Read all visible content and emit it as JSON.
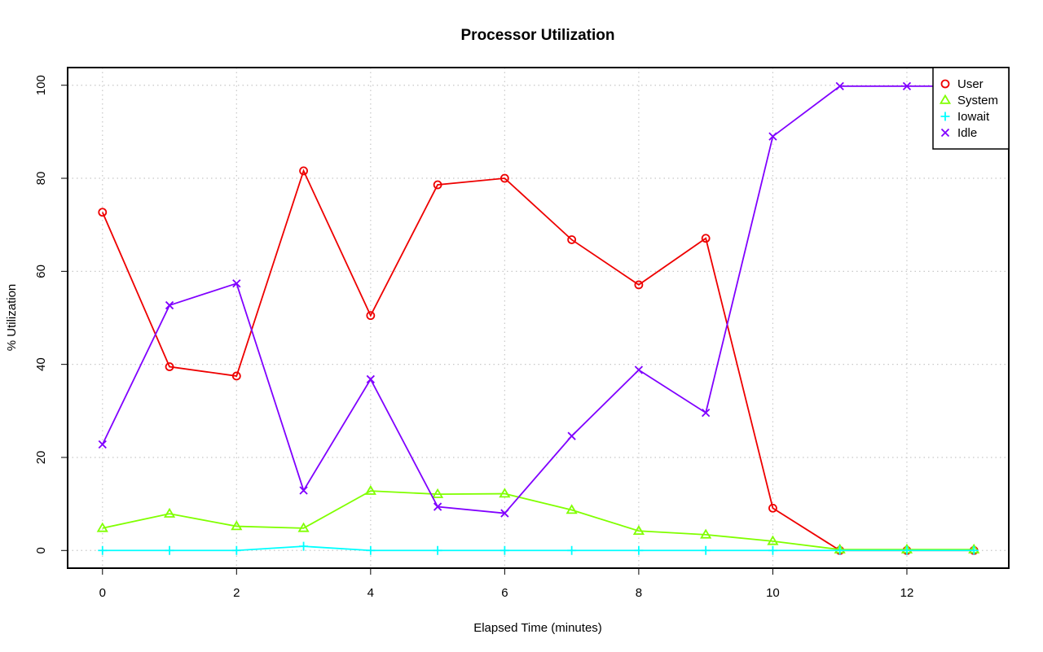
{
  "chart_data": {
    "type": "line",
    "title": "Processor Utilization",
    "xlabel": "Elapsed Time (minutes)",
    "ylabel": "% Utilization",
    "x": [
      0,
      1,
      2,
      3,
      4,
      5,
      6,
      7,
      8,
      9,
      10,
      11,
      12,
      13
    ],
    "xlim": [
      -0.52,
      13.52
    ],
    "ylim": [
      -3.8,
      103.8
    ],
    "xticks": [
      0,
      2,
      4,
      6,
      8,
      10,
      12
    ],
    "yticks": [
      0,
      20,
      40,
      60,
      80,
      100
    ],
    "grid": true,
    "legend_position": "top-right",
    "series": [
      {
        "name": "User",
        "color": "#ee0000",
        "marker": "circle",
        "values": [
          72.7,
          39.5,
          37.5,
          81.6,
          50.5,
          78.6,
          80.0,
          66.8,
          57.1,
          67.1,
          9.1,
          0.0,
          0.0,
          0.0
        ]
      },
      {
        "name": "System",
        "color": "#80ff00",
        "marker": "triangle",
        "values": [
          4.8,
          7.9,
          5.2,
          4.8,
          12.8,
          12.1,
          12.2,
          8.7,
          4.2,
          3.4,
          2.0,
          0.2,
          0.2,
          0.2
        ]
      },
      {
        "name": "Iowait",
        "color": "#00ffff",
        "marker": "plus",
        "values": [
          0.0,
          0.0,
          0.0,
          0.9,
          0.0,
          0.0,
          0.0,
          0.0,
          0.0,
          0.0,
          0.0,
          0.0,
          0.0,
          0.0
        ]
      },
      {
        "name": "Idle",
        "color": "#8000ff",
        "marker": "cross",
        "values": [
          22.8,
          52.7,
          57.4,
          12.9,
          36.8,
          9.4,
          8.0,
          24.6,
          38.8,
          29.6,
          89.0,
          99.8,
          99.8,
          99.8
        ]
      }
    ]
  }
}
